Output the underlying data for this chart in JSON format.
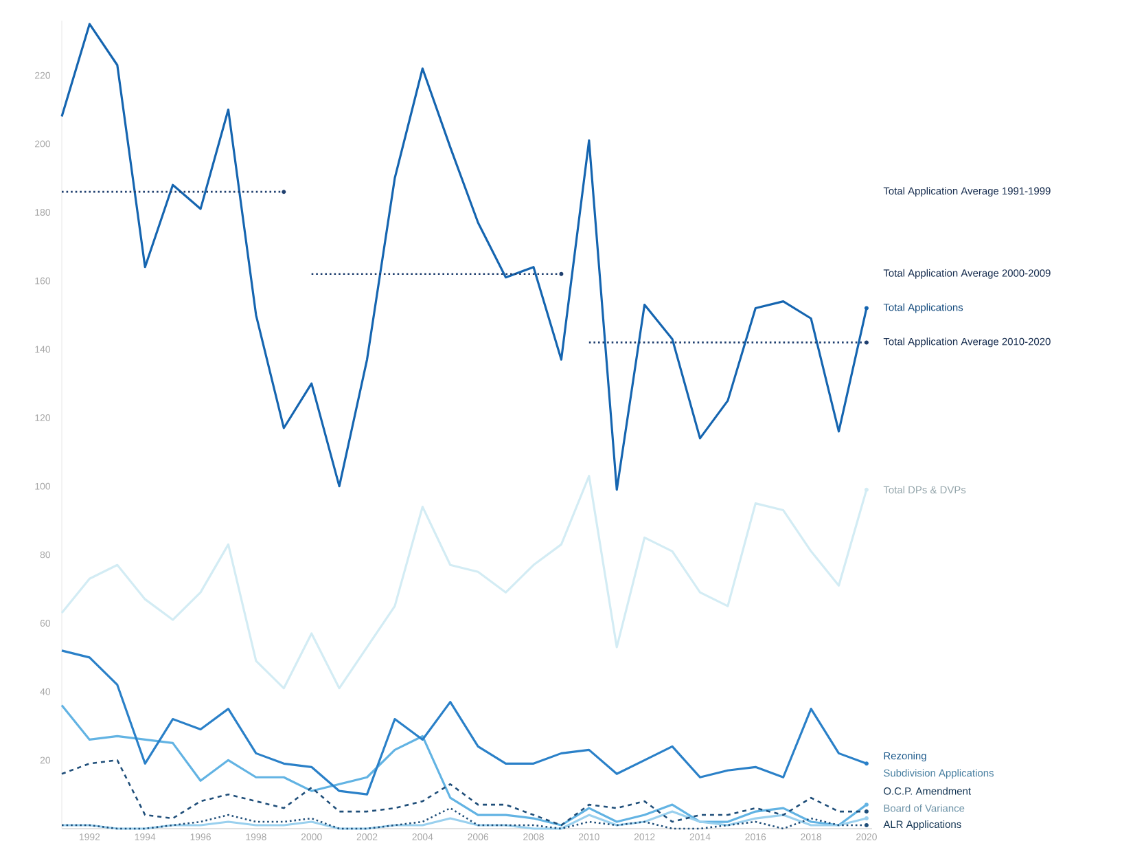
{
  "chart_data": {
    "type": "line",
    "x": [
      1991,
      1992,
      1993,
      1994,
      1995,
      1996,
      1997,
      1998,
      1999,
      2000,
      2001,
      2002,
      2003,
      2004,
      2005,
      2006,
      2007,
      2008,
      2009,
      2010,
      2011,
      2012,
      2013,
      2014,
      2015,
      2016,
      2017,
      2018,
      2019,
      2020
    ],
    "xlim": [
      1991,
      2020.2
    ],
    "ylim": [
      0,
      236
    ],
    "xticks": [
      1992,
      1994,
      1996,
      1998,
      2000,
      2002,
      2004,
      2006,
      2008,
      2010,
      2012,
      2014,
      2016,
      2018,
      2020
    ],
    "yticks": [
      20,
      40,
      60,
      80,
      100,
      120,
      140,
      160,
      180,
      200,
      220
    ],
    "grid": false,
    "series": [
      {
        "name": "Total DPs & DVPs",
        "color": "#d3ecf4",
        "line_style": "solid",
        "values": [
          63,
          73,
          77,
          67,
          61,
          69,
          83,
          49,
          41,
          57,
          41,
          53,
          65,
          94,
          77,
          75,
          69,
          77,
          83,
          103,
          53,
          85,
          81,
          69,
          65,
          95,
          93,
          81,
          71,
          99
        ]
      },
      {
        "name": "Total Applications",
        "color": "#1565b0",
        "line_style": "solid",
        "values": [
          208,
          235,
          223,
          164,
          188,
          181,
          210,
          150,
          117,
          130,
          100,
          137,
          190,
          222,
          199,
          177,
          161,
          164,
          137,
          201,
          99,
          153,
          143,
          114,
          125,
          152,
          154,
          149,
          116,
          152
        ]
      },
      {
        "name": "Total Application Average 1991-1999",
        "color": "#1f3f6f",
        "line_style": "dotted",
        "x": [
          1991,
          1999
        ],
        "values": [
          186,
          186
        ]
      },
      {
        "name": "Total Application Average 2000-2009",
        "color": "#1f3f6f",
        "line_style": "dotted",
        "x": [
          2000,
          2009
        ],
        "values": [
          162,
          162
        ]
      },
      {
        "name": "Total Application Average 2010-2020",
        "color": "#1f3f6f",
        "line_style": "dotted",
        "x": [
          2010,
          2020
        ],
        "values": [
          142,
          142
        ]
      },
      {
        "name": "Subdivision Applications",
        "color": "#62b3e3",
        "line_style": "solid",
        "values": [
          36,
          26,
          27,
          26,
          25,
          14,
          20,
          15,
          15,
          11,
          13,
          15,
          23,
          27,
          9,
          4,
          4,
          3,
          1,
          6,
          2,
          4,
          7,
          2,
          2,
          5,
          6,
          2,
          1,
          7
        ]
      },
      {
        "name": "Rezoning",
        "color": "#2a80c8",
        "line_style": "solid",
        "values": [
          52,
          50,
          42,
          19,
          32,
          29,
          35,
          22,
          19,
          18,
          11,
          10,
          32,
          26,
          37,
          24,
          19,
          19,
          22,
          23,
          16,
          20,
          24,
          15,
          17,
          18,
          15,
          35,
          22,
          19
        ]
      },
      {
        "name": "Board of Variance",
        "color": "#9ad0ee",
        "line_style": "solid",
        "values": [
          1,
          1,
          0,
          0,
          1,
          1,
          2,
          1,
          1,
          2,
          0,
          0,
          1,
          1,
          3,
          1,
          1,
          0,
          0,
          4,
          1,
          2,
          5,
          2,
          1,
          3,
          4,
          1,
          1,
          3
        ]
      },
      {
        "name": "O.C.P. Amendment",
        "color": "#1f4e79",
        "line_style": "dashed",
        "values": [
          16,
          19,
          20,
          4,
          3,
          8,
          10,
          8,
          6,
          12,
          5,
          5,
          6,
          8,
          13,
          7,
          7,
          4,
          1,
          7,
          6,
          8,
          2,
          4,
          4,
          6,
          4,
          9,
          5,
          5
        ]
      },
      {
        "name": "ALR Applications",
        "color": "#1f4e79",
        "line_style": "dotted",
        "values": [
          1,
          1,
          0,
          0,
          1,
          2,
          4,
          2,
          2,
          3,
          0,
          0,
          1,
          2,
          6,
          1,
          1,
          1,
          0,
          2,
          1,
          2,
          0,
          0,
          1,
          2,
          0,
          3,
          1,
          1
        ]
      }
    ]
  }
}
